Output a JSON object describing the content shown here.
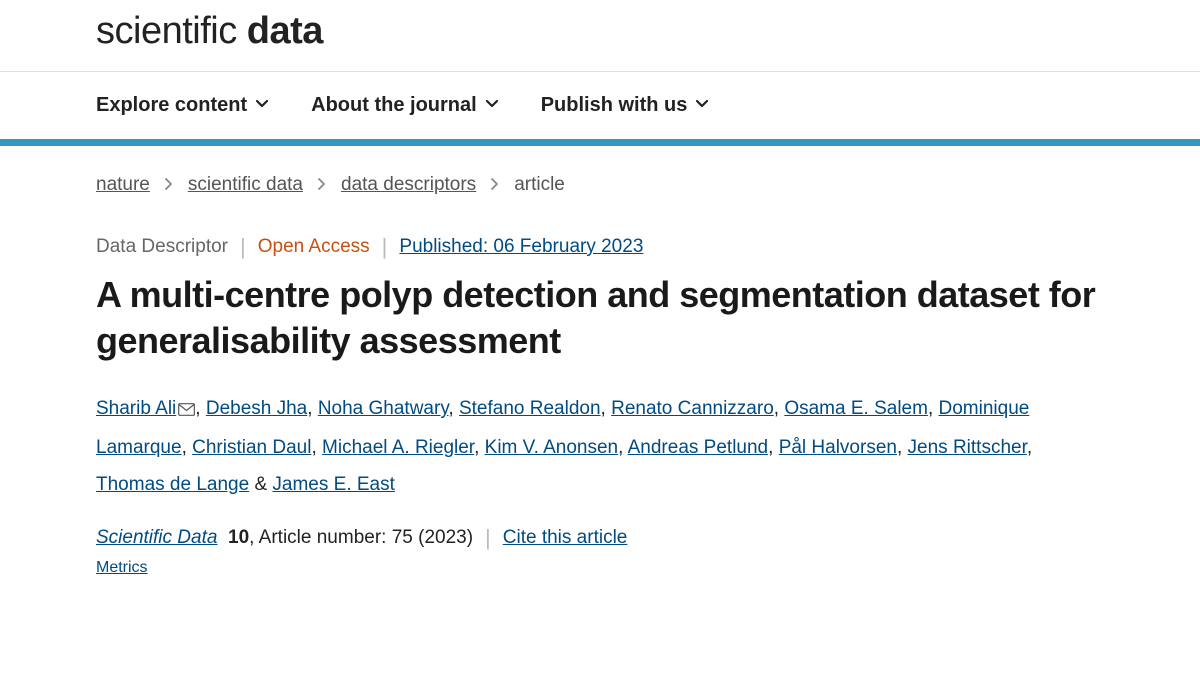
{
  "logo": {
    "light": "scientific ",
    "bold": "data"
  },
  "nav": {
    "items": [
      {
        "label": "Explore content"
      },
      {
        "label": "About the journal"
      },
      {
        "label": "Publish with us"
      }
    ]
  },
  "accent_color": "#3598c0",
  "breadcrumb": {
    "items": [
      {
        "label": "nature",
        "link": true
      },
      {
        "label": "scientific data",
        "link": true
      },
      {
        "label": "data descriptors",
        "link": true
      },
      {
        "label": "article",
        "link": false
      }
    ]
  },
  "meta": {
    "type": "Data Descriptor",
    "access": "Open Access",
    "published_label": "Published: 06 February 2023"
  },
  "title": "A multi-centre polyp detection and segmentation dataset for generalisability assessment",
  "authors": [
    {
      "name": "Sharib Ali",
      "corresponding": true
    },
    {
      "name": "Debesh Jha"
    },
    {
      "name": "Noha Ghatwary"
    },
    {
      "name": "Stefano Realdon"
    },
    {
      "name": "Renato Cannizzaro"
    },
    {
      "name": "Osama E. Salem"
    },
    {
      "name": "Dominique Lamarque"
    },
    {
      "name": "Christian Daul"
    },
    {
      "name": "Michael A. Riegler"
    },
    {
      "name": "Kim V. Anonsen"
    },
    {
      "name": "Andreas Petlund"
    },
    {
      "name": "Pål Halvorsen"
    },
    {
      "name": "Jens Rittscher"
    },
    {
      "name": "Thomas de Lange"
    },
    {
      "name": "James E. East"
    }
  ],
  "citation": {
    "journal": "Scientific Data",
    "volume": "10",
    "article_number_text": ", Article number: 75 (2023)",
    "cite_label": "Cite this article"
  },
  "metrics_label": "Metrics",
  "colors": {
    "link": "#004b83",
    "open_access": "#c65012",
    "text": "#222222",
    "muted": "#666666"
  }
}
